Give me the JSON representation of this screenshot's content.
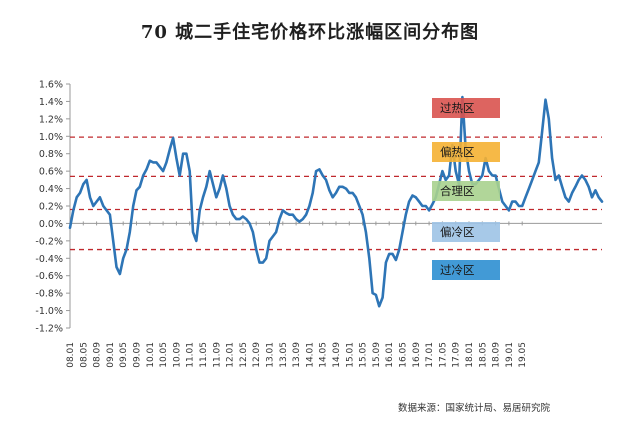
{
  "title": "70 城二手住宅价格环比涨幅区间分布图",
  "source": "数据来源：国家统计局、易居研究院",
  "chart_data": {
    "type": "line",
    "title": "70 城二手住宅价格环比涨幅区间分布图",
    "xlabel": "",
    "ylabel": "",
    "ylim": [
      -1.2,
      1.6
    ],
    "yticks": [
      "1.6%",
      "1.4%",
      "1.2%",
      "1.0%",
      "0.8%",
      "0.6%",
      "0.4%",
      "0.2%",
      "0.0%",
      "-0.2%",
      "-0.4%",
      "-0.6%",
      "-0.8%",
      "-1.0%",
      "-1.2%"
    ],
    "x_ticks": [
      "08.01",
      "08.05",
      "08.09",
      "09.01",
      "09.05",
      "09.09",
      "10.01",
      "10.05",
      "10.09",
      "11.01",
      "11.05",
      "11.09",
      "12.01",
      "12.05",
      "12.09",
      "13.01",
      "13.05",
      "13.09",
      "14.01",
      "14.05",
      "14.09",
      "15.01",
      "15.05",
      "15.09",
      "16.01",
      "16.05",
      "16.09",
      "17.01",
      "17.05",
      "17.09",
      "18.01",
      "18.05",
      "18.09",
      "19.01",
      "19.05"
    ],
    "grid": false,
    "line_color": "#2e75b6",
    "reference_lines": [
      0.99,
      0.54,
      0.16,
      -0.3
    ],
    "zones": [
      {
        "label": "过热区",
        "color": "#d9534f"
      },
      {
        "label": "偏热区",
        "color": "#f5b133"
      },
      {
        "label": "合理区",
        "color": "#a9d18e"
      },
      {
        "label": "偏冷区",
        "color": "#9dc3e6"
      },
      {
        "label": "过冷区",
        "color": "#2e8fd1"
      }
    ],
    "series": [
      {
        "values": [
          -0.05,
          0.15,
          0.3,
          0.35,
          0.45,
          0.5,
          0.3,
          0.2,
          0.25,
          0.3,
          0.2,
          0.15,
          0.1,
          -0.2,
          -0.5,
          -0.58,
          -0.4,
          -0.3,
          -0.1,
          0.2,
          0.38,
          0.42,
          0.55,
          0.62,
          0.72,
          0.7,
          0.7,
          0.65,
          0.6,
          0.7,
          0.85,
          0.98,
          0.75,
          0.55,
          0.8,
          0.8,
          0.6,
          -0.1,
          -0.2,
          0.15,
          0.3,
          0.42,
          0.6,
          0.45,
          0.3,
          0.4,
          0.55,
          0.4,
          0.2,
          0.1,
          0.05,
          0.05,
          0.08,
          0.05,
          0.0,
          -0.1,
          -0.3,
          -0.45,
          -0.45,
          -0.4,
          -0.2,
          -0.15,
          -0.1,
          0.05,
          0.15,
          0.12,
          0.1,
          0.1,
          0.05,
          0.02,
          0.05,
          0.1,
          0.2,
          0.35,
          0.6,
          0.62,
          0.55,
          0.5,
          0.38,
          0.3,
          0.35,
          0.42,
          0.42,
          0.4,
          0.35,
          0.35,
          0.3,
          0.2,
          0.1,
          -0.1,
          -0.4,
          -0.8,
          -0.82,
          -0.95,
          -0.85,
          -0.45,
          -0.35,
          -0.35,
          -0.42,
          -0.3,
          -0.1,
          0.1,
          0.25,
          0.32,
          0.3,
          0.25,
          0.2,
          0.2,
          0.15,
          0.22,
          0.3,
          0.45,
          0.6,
          0.5,
          0.55,
          0.9,
          0.6,
          0.45,
          1.45,
          0.85,
          0.6,
          0.45,
          0.45,
          0.5,
          0.55,
          0.75,
          0.6,
          0.55,
          0.55,
          0.4,
          0.25,
          0.2,
          0.15,
          0.25,
          0.25,
          0.2,
          0.2,
          0.3,
          0.4,
          0.5,
          0.6,
          0.7,
          1.05,
          1.42,
          1.2,
          0.75,
          0.5,
          0.55,
          0.42,
          0.3,
          0.25,
          0.35,
          0.42,
          0.5,
          0.55,
          0.5,
          0.42,
          0.3,
          0.38,
          0.3,
          0.25
        ]
      }
    ]
  }
}
